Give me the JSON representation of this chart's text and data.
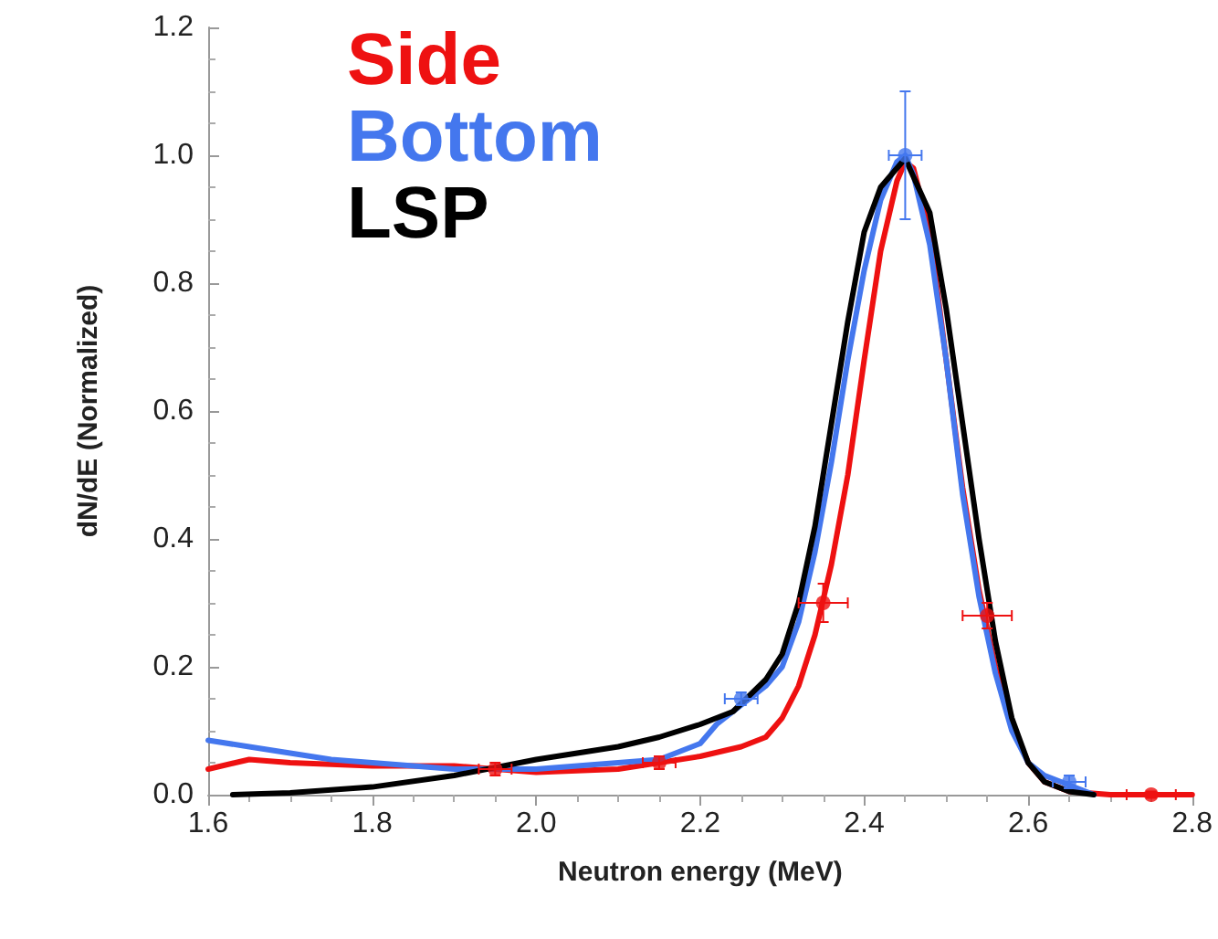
{
  "chart_data": {
    "type": "line",
    "xlabel": "Neutron energy (MeV)",
    "ylabel": "dN/dE (Normalized)",
    "xlim": [
      1.6,
      2.8
    ],
    "xticks": [
      1.6,
      {
        "value": 1.8,
        "label": "1.8"
      },
      {
        "value": 2.0,
        "label": "2.0"
      },
      2.2,
      2.4,
      2.6,
      2.8
    ],
    "ylim": [
      0,
      1.2
    ],
    "yticks": [
      {
        "value": 0,
        "label": "0.0"
      },
      0.2,
      0.4,
      0.6,
      0.8,
      {
        "value": 1.0,
        "label": "1.0"
      },
      1.2
    ],
    "grid": false,
    "legend": "top left",
    "marker": "none",
    "line_style": "solid",
    "series": [
      {
        "name": "Side",
        "color": "#ee1111",
        "x": [
          1.6,
          1.65,
          1.7,
          1.8,
          1.9,
          2.0,
          2.1,
          2.15,
          2.2,
          2.25,
          2.28,
          2.3,
          2.32,
          2.34,
          2.36,
          2.38,
          2.4,
          2.42,
          2.44,
          2.45,
          2.46,
          2.48,
          2.5,
          2.52,
          2.54,
          2.56,
          2.58,
          2.6,
          2.62,
          2.65,
          2.7,
          2.8
        ],
        "values": [
          0.04,
          0.055,
          0.05,
          0.045,
          0.045,
          0.035,
          0.04,
          0.05,
          0.06,
          0.075,
          0.09,
          0.12,
          0.17,
          0.25,
          0.36,
          0.5,
          0.68,
          0.85,
          0.96,
          0.99,
          0.98,
          0.88,
          0.68,
          0.48,
          0.32,
          0.2,
          0.11,
          0.05,
          0.02,
          0.005,
          0,
          0
        ]
      },
      {
        "name": "Bottom",
        "color": "#4477ee",
        "x": [
          1.6,
          1.65,
          1.7,
          1.75,
          1.8,
          1.9,
          2.0,
          2.1,
          2.15,
          2.2,
          2.22,
          2.25,
          2.28,
          2.3,
          2.32,
          2.34,
          2.36,
          2.38,
          2.4,
          2.42,
          2.44,
          2.45,
          2.46,
          2.48,
          2.5,
          2.52,
          2.54,
          2.56,
          2.58,
          2.6,
          2.62,
          2.65,
          2.68
        ],
        "values": [
          0.085,
          0.075,
          0.065,
          0.055,
          0.05,
          0.04,
          0.04,
          0.05,
          0.055,
          0.08,
          0.11,
          0.14,
          0.17,
          0.2,
          0.27,
          0.38,
          0.52,
          0.68,
          0.82,
          0.93,
          0.99,
          1.0,
          0.97,
          0.86,
          0.68,
          0.47,
          0.31,
          0.19,
          0.1,
          0.05,
          0.03,
          0.015,
          0
        ]
      },
      {
        "name": "LSP",
        "color": "#000000",
        "x": [
          1.63,
          1.7,
          1.8,
          1.9,
          2.0,
          2.1,
          2.15,
          2.2,
          2.24,
          2.28,
          2.3,
          2.32,
          2.34,
          2.36,
          2.38,
          2.4,
          2.42,
          2.45,
          2.48,
          2.5,
          2.52,
          2.54,
          2.56,
          2.58,
          2.6,
          2.62,
          2.65,
          2.68
        ],
        "values": [
          0,
          0.003,
          0.012,
          0.03,
          0.055,
          0.075,
          0.09,
          0.11,
          0.13,
          0.18,
          0.22,
          0.3,
          0.42,
          0.58,
          0.74,
          0.88,
          0.95,
          0.995,
          0.91,
          0.76,
          0.58,
          0.4,
          0.24,
          0.12,
          0.05,
          0.02,
          0.005,
          0
        ]
      },
      {
        "type": "scatter",
        "marker": "circle",
        "color": "#ee1111",
        "x": [
          1.95,
          2.15,
          2.35,
          2.55,
          2.75
        ],
        "values": [
          0.04,
          0.05,
          0.3,
          0.28,
          0
        ],
        "errors": [
          0.01,
          0.01,
          0.03,
          0.02,
          0.005
        ],
        "xerrors": [
          0.02,
          0.02,
          0.03,
          0.03,
          0.03
        ]
      },
      {
        "type": "scatter",
        "marker": "circle",
        "color": "#4477ee",
        "x": [
          2.25,
          2.45,
          2.65
        ],
        "values": [
          0.15,
          1.0,
          0.02
        ],
        "errors": [
          0.01,
          0.1,
          0.01
        ],
        "xerrors": [
          0.02,
          0.02,
          0.02
        ]
      }
    ]
  }
}
